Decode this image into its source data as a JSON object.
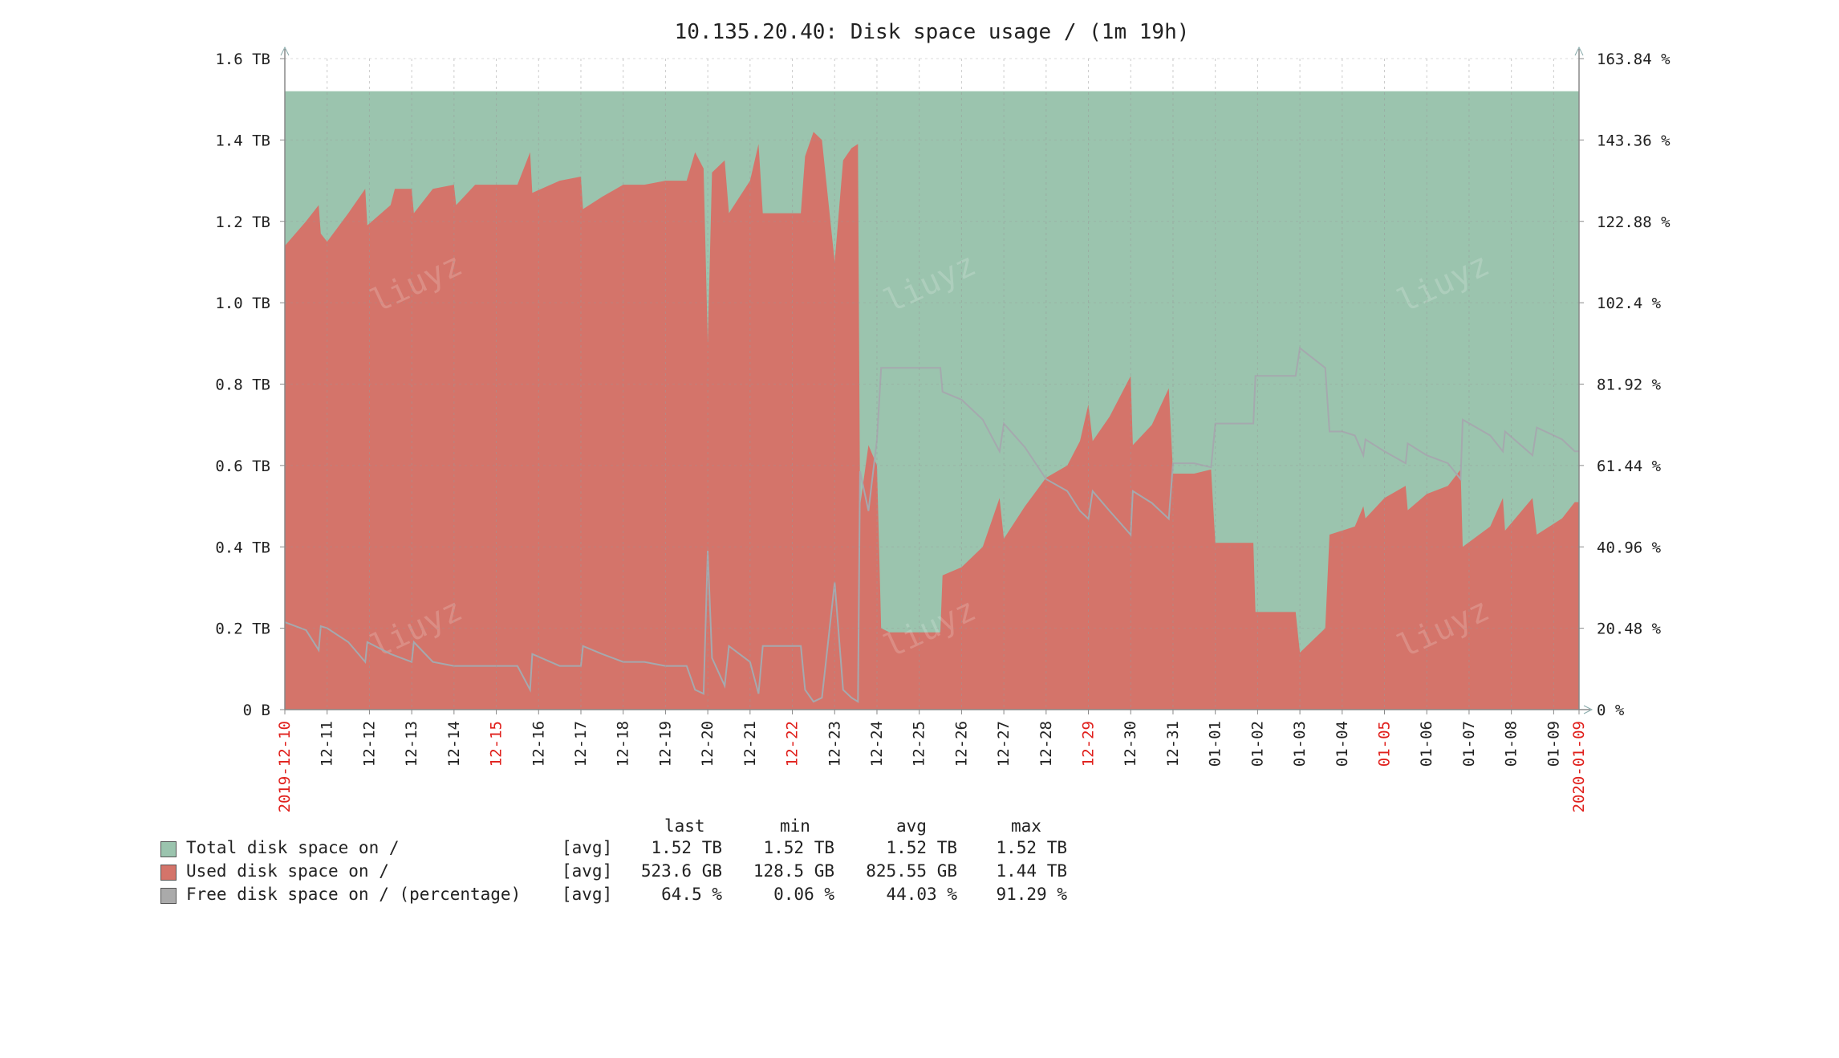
{
  "chart_data": {
    "type": "area",
    "title": "10.135.20.40: Disk space usage / (1m 19h)",
    "y_left_ticks": [
      "0 B",
      "0.2 TB",
      "0.4 TB",
      "0.6 TB",
      "0.8 TB",
      "1.0 TB",
      "1.2 TB",
      "1.4 TB",
      "1.6 TB"
    ],
    "y_left_range_tb": [
      0,
      1.6
    ],
    "y_right_ticks": [
      "0 %",
      "20.48 %",
      "40.96 %",
      "61.44 %",
      "81.92 %",
      "102.4 %",
      "122.88 %",
      "143.36 %",
      "163.84 %"
    ],
    "y_right_range_pct": [
      0,
      163.84
    ],
    "x_range_days": [
      0,
      30.6
    ],
    "x_labels": [
      {
        "text": "2019-12-10",
        "day": 0,
        "red": true
      },
      {
        "text": "12-11",
        "day": 1,
        "red": false
      },
      {
        "text": "12-12",
        "day": 2,
        "red": false
      },
      {
        "text": "12-13",
        "day": 3,
        "red": false
      },
      {
        "text": "12-14",
        "day": 4,
        "red": false
      },
      {
        "text": "12-15",
        "day": 5,
        "red": true
      },
      {
        "text": "12-16",
        "day": 6,
        "red": false
      },
      {
        "text": "12-17",
        "day": 7,
        "red": false
      },
      {
        "text": "12-18",
        "day": 8,
        "red": false
      },
      {
        "text": "12-19",
        "day": 9,
        "red": false
      },
      {
        "text": "12-20",
        "day": 10,
        "red": false
      },
      {
        "text": "12-21",
        "day": 11,
        "red": false
      },
      {
        "text": "12-22",
        "day": 12,
        "red": true
      },
      {
        "text": "12-23",
        "day": 13,
        "red": false
      },
      {
        "text": "12-24",
        "day": 14,
        "red": false
      },
      {
        "text": "12-25",
        "day": 15,
        "red": false
      },
      {
        "text": "12-26",
        "day": 16,
        "red": false
      },
      {
        "text": "12-27",
        "day": 17,
        "red": false
      },
      {
        "text": "12-28",
        "day": 18,
        "red": false
      },
      {
        "text": "12-29",
        "day": 19,
        "red": true
      },
      {
        "text": "12-30",
        "day": 20,
        "red": false
      },
      {
        "text": "12-31",
        "day": 21,
        "red": false
      },
      {
        "text": "01-01",
        "day": 22,
        "red": false
      },
      {
        "text": "01-02",
        "day": 23,
        "red": false
      },
      {
        "text": "01-03",
        "day": 24,
        "red": false
      },
      {
        "text": "01-04",
        "day": 25,
        "red": false
      },
      {
        "text": "01-05",
        "day": 26,
        "red": true
      },
      {
        "text": "01-06",
        "day": 27,
        "red": false
      },
      {
        "text": "01-07",
        "day": 28,
        "red": false
      },
      {
        "text": "01-08",
        "day": 29,
        "red": false
      },
      {
        "text": "01-09",
        "day": 30,
        "red": false
      },
      {
        "text": "2020-01-09",
        "day": 30.6,
        "red": true
      }
    ],
    "series": [
      {
        "name": "Total disk space on /",
        "color": "#9BC4AE",
        "axis": "left",
        "points": [
          [
            0,
            1.52
          ],
          [
            30.6,
            1.52
          ]
        ]
      },
      {
        "name": "Used disk space on /",
        "color": "#D4746A",
        "axis": "left",
        "points": [
          [
            0,
            1.14
          ],
          [
            0.5,
            1.2
          ],
          [
            0.8,
            1.24
          ],
          [
            0.85,
            1.17
          ],
          [
            1,
            1.15
          ],
          [
            1.5,
            1.22
          ],
          [
            1.9,
            1.28
          ],
          [
            1.95,
            1.19
          ],
          [
            2.5,
            1.24
          ],
          [
            2.6,
            1.28
          ],
          [
            3,
            1.28
          ],
          [
            3.05,
            1.22
          ],
          [
            3.5,
            1.28
          ],
          [
            4,
            1.29
          ],
          [
            4.05,
            1.24
          ],
          [
            4.5,
            1.29
          ],
          [
            5,
            1.29
          ],
          [
            5.5,
            1.29
          ],
          [
            5.8,
            1.37
          ],
          [
            5.85,
            1.27
          ],
          [
            6.5,
            1.3
          ],
          [
            7,
            1.31
          ],
          [
            7.05,
            1.23
          ],
          [
            7.5,
            1.26
          ],
          [
            8,
            1.29
          ],
          [
            8.5,
            1.29
          ],
          [
            9,
            1.3
          ],
          [
            9.5,
            1.3
          ],
          [
            9.7,
            1.37
          ],
          [
            9.9,
            1.33
          ],
          [
            10.0,
            0.9
          ],
          [
            10.1,
            1.32
          ],
          [
            10.4,
            1.35
          ],
          [
            10.5,
            1.22
          ],
          [
            11,
            1.3
          ],
          [
            11.2,
            1.39
          ],
          [
            11.3,
            1.22
          ],
          [
            12.2,
            1.22
          ],
          [
            12.3,
            1.36
          ],
          [
            12.5,
            1.42
          ],
          [
            12.7,
            1.4
          ],
          [
            13.0,
            1.1
          ],
          [
            13.2,
            1.35
          ],
          [
            13.4,
            1.38
          ],
          [
            13.55,
            1.39
          ],
          [
            13.6,
            0.5
          ],
          [
            13.8,
            0.65
          ],
          [
            14.0,
            0.6
          ],
          [
            14.1,
            0.2
          ],
          [
            14.3,
            0.19
          ],
          [
            15,
            0.19
          ],
          [
            15.5,
            0.19
          ],
          [
            15.55,
            0.33
          ],
          [
            16,
            0.35
          ],
          [
            16.5,
            0.4
          ],
          [
            16.9,
            0.52
          ],
          [
            17,
            0.42
          ],
          [
            17.5,
            0.5
          ],
          [
            18,
            0.57
          ],
          [
            18.5,
            0.6
          ],
          [
            18.8,
            0.66
          ],
          [
            19,
            0.75
          ],
          [
            19.1,
            0.66
          ],
          [
            19.5,
            0.72
          ],
          [
            20,
            0.82
          ],
          [
            20.05,
            0.65
          ],
          [
            20.5,
            0.7
          ],
          [
            20.9,
            0.79
          ],
          [
            21,
            0.58
          ],
          [
            21.5,
            0.58
          ],
          [
            21.9,
            0.59
          ],
          [
            22,
            0.41
          ],
          [
            22.9,
            0.41
          ],
          [
            22.95,
            0.24
          ],
          [
            23.9,
            0.24
          ],
          [
            24,
            0.14
          ],
          [
            24.6,
            0.2
          ],
          [
            24.7,
            0.43
          ],
          [
            25,
            0.44
          ],
          [
            25.3,
            0.45
          ],
          [
            25.5,
            0.5
          ],
          [
            25.55,
            0.47
          ],
          [
            26,
            0.52
          ],
          [
            26.5,
            0.55
          ],
          [
            26.55,
            0.49
          ],
          [
            27,
            0.53
          ],
          [
            27.5,
            0.55
          ],
          [
            27.8,
            0.59
          ],
          [
            27.85,
            0.4
          ],
          [
            28.5,
            0.45
          ],
          [
            28.8,
            0.52
          ],
          [
            28.85,
            0.44
          ],
          [
            29.5,
            0.52
          ],
          [
            29.6,
            0.43
          ],
          [
            30.2,
            0.47
          ],
          [
            30.5,
            0.51
          ],
          [
            30.6,
            0.51
          ]
        ]
      },
      {
        "name": "Free disk space on / (percentage)",
        "color": "#AAAAAA",
        "axis": "right",
        "points": [
          [
            0,
            22
          ],
          [
            0.5,
            20
          ],
          [
            0.8,
            15
          ],
          [
            0.85,
            21
          ],
          [
            1,
            20.5
          ],
          [
            1.5,
            17
          ],
          [
            1.9,
            12
          ],
          [
            1.95,
            17
          ],
          [
            2.5,
            14
          ],
          [
            3,
            12
          ],
          [
            3.05,
            17
          ],
          [
            3.5,
            12
          ],
          [
            4,
            11
          ],
          [
            4.5,
            11
          ],
          [
            5,
            11
          ],
          [
            5.5,
            11
          ],
          [
            5.8,
            5
          ],
          [
            5.85,
            14
          ],
          [
            6.5,
            11
          ],
          [
            7,
            11
          ],
          [
            7.05,
            16
          ],
          [
            7.5,
            14
          ],
          [
            8,
            12
          ],
          [
            8.5,
            12
          ],
          [
            9,
            11
          ],
          [
            9.5,
            11
          ],
          [
            9.7,
            5
          ],
          [
            9.9,
            4
          ],
          [
            10.0,
            40
          ],
          [
            10.1,
            13
          ],
          [
            10.4,
            6
          ],
          [
            10.5,
            16
          ],
          [
            11,
            12
          ],
          [
            11.2,
            4
          ],
          [
            11.3,
            16
          ],
          [
            12.2,
            16
          ],
          [
            12.3,
            5
          ],
          [
            12.5,
            2
          ],
          [
            12.7,
            3
          ],
          [
            13.0,
            32
          ],
          [
            13.2,
            5
          ],
          [
            13.4,
            3
          ],
          [
            13.55,
            2
          ],
          [
            13.6,
            60
          ],
          [
            13.8,
            50
          ],
          [
            14.0,
            68
          ],
          [
            14.1,
            86
          ],
          [
            14.3,
            86
          ],
          [
            15,
            86
          ],
          [
            15.5,
            86
          ],
          [
            15.55,
            80
          ],
          [
            16,
            78
          ],
          [
            16.5,
            73
          ],
          [
            16.9,
            65
          ],
          [
            17,
            72
          ],
          [
            17.5,
            66
          ],
          [
            18,
            58
          ],
          [
            18.5,
            55
          ],
          [
            18.8,
            50
          ],
          [
            19,
            48
          ],
          [
            19.1,
            55
          ],
          [
            19.5,
            50
          ],
          [
            20,
            44
          ],
          [
            20.05,
            55
          ],
          [
            20.5,
            52
          ],
          [
            20.9,
            48
          ],
          [
            21,
            62
          ],
          [
            21.5,
            62
          ],
          [
            21.9,
            61
          ],
          [
            22,
            72
          ],
          [
            22.9,
            72
          ],
          [
            22.95,
            84
          ],
          [
            23.9,
            84
          ],
          [
            24,
            91
          ],
          [
            24.6,
            86
          ],
          [
            24.7,
            70
          ],
          [
            25,
            70
          ],
          [
            25.3,
            69
          ],
          [
            25.5,
            64
          ],
          [
            25.55,
            68
          ],
          [
            26,
            65
          ],
          [
            26.5,
            62
          ],
          [
            26.55,
            67
          ],
          [
            27,
            64
          ],
          [
            27.5,
            62
          ],
          [
            27.8,
            58
          ],
          [
            27.85,
            73
          ],
          [
            28.5,
            69
          ],
          [
            28.8,
            65
          ],
          [
            28.85,
            70
          ],
          [
            29.5,
            64
          ],
          [
            29.6,
            71
          ],
          [
            30.2,
            68
          ],
          [
            30.5,
            65
          ],
          [
            30.6,
            65
          ]
        ]
      }
    ],
    "watermark": "liuyz"
  },
  "legend": {
    "headers": {
      "last": "last",
      "min": "min",
      "avg": "avg",
      "max": "max"
    },
    "rows": [
      {
        "name": "Total disk space on /",
        "func": "[avg]",
        "last": "1.52 TB",
        "min": "1.52 TB",
        "avg": "1.52 TB",
        "max": "1.52 TB",
        "color": "#9BC4AE"
      },
      {
        "name": "Used disk space on /",
        "func": "[avg]",
        "last": "523.6 GB",
        "min": "128.5 GB",
        "avg": "825.55 GB",
        "max": "1.44 TB",
        "color": "#D4746A"
      },
      {
        "name": "Free disk space on / (percentage)",
        "func": "[avg]",
        "last": "64.5 %",
        "min": "0.06 %",
        "avg": "44.03 %",
        "max": "91.29 %",
        "color": "#AAAAAA"
      }
    ]
  }
}
